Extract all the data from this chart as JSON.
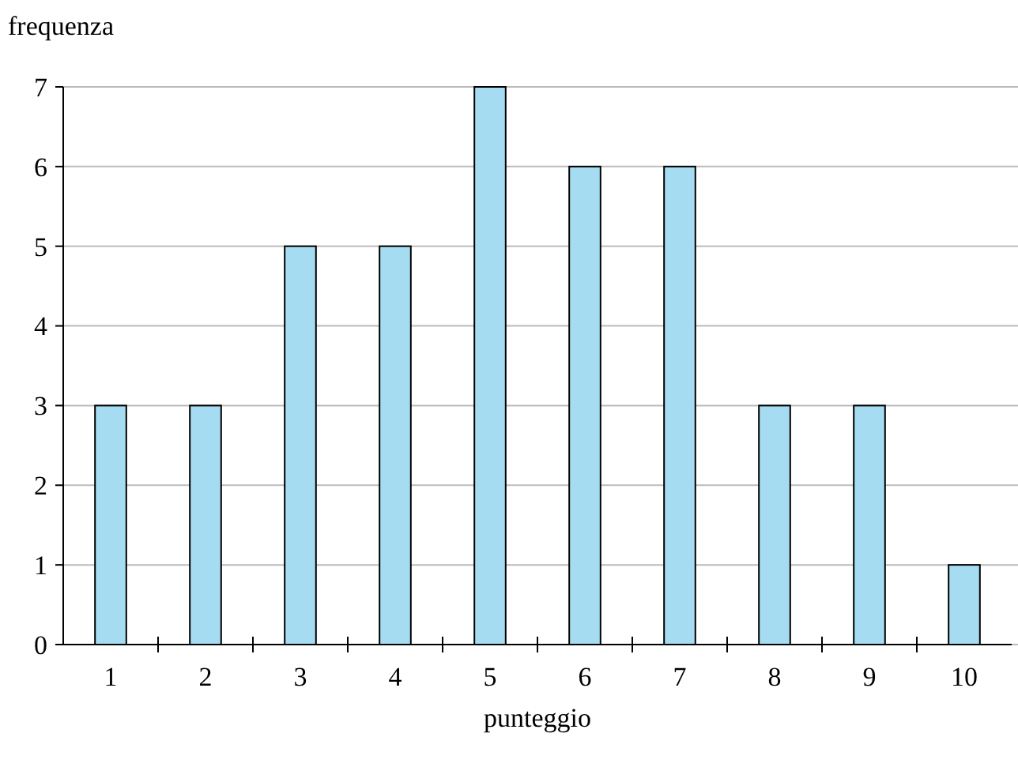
{
  "chart_data": {
    "type": "bar",
    "xlabel": "punteggio",
    "ylabel": "frequenza",
    "categories": [
      "1",
      "2",
      "3",
      "4",
      "5",
      "6",
      "7",
      "8",
      "9",
      "10"
    ],
    "values": [
      3,
      3,
      5,
      5,
      7,
      6,
      6,
      3,
      3,
      1
    ],
    "color": "#a6dcf2",
    "ylim": [
      0,
      7
    ],
    "yticks": [
      0,
      1,
      2,
      3,
      4,
      5,
      6,
      7
    ],
    "grid": "y"
  }
}
